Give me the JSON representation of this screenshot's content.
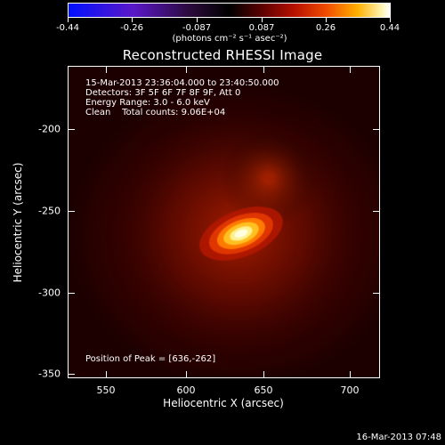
{
  "colorbar": {
    "tick_labels": [
      "-0.44",
      "-0.26",
      "-0.087",
      "0.087",
      "0.26",
      "0.44"
    ],
    "units": "(photons cm⁻² s⁻¹ asec⁻²)",
    "range": [
      -0.44,
      0.44
    ]
  },
  "title": "Reconstructed RHESSI Image",
  "info": {
    "time_range": "15-Mar-2013 23:36:04.000 to 23:40:50.000",
    "detectors": "Detectors: 3F 5F 6F 7F 8F 9F, Att 0",
    "energy_range": "Energy Range: 3.0 - 6.0 keV",
    "clean_counts": "Clean    Total counts: 9.06E+04"
  },
  "peak_position": "Position of Peak = [636,-262]",
  "axes": {
    "x_label": "Heliocentric X (arcsec)",
    "y_label": "Heliocentric Y (arcsec)",
    "x_ticks": [
      "550",
      "600",
      "650",
      "700"
    ],
    "y_ticks": [
      "-200",
      "-250",
      "-300",
      "-350"
    ],
    "xlim": [
      526,
      718
    ],
    "ylim": [
      -352,
      -160
    ]
  },
  "source": {
    "peak_x": 636,
    "peak_y": -262
  },
  "timestamp": "16-Mar-2013 07:48"
}
